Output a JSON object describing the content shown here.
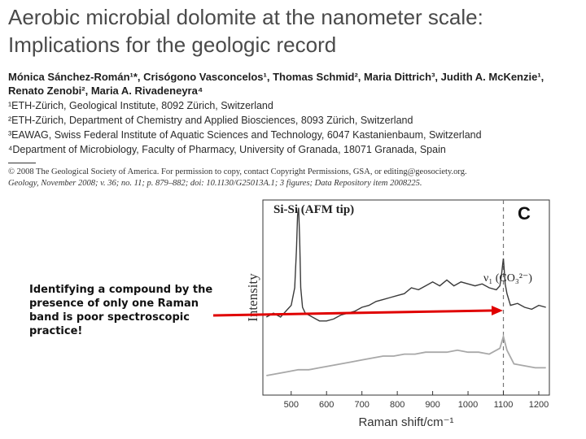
{
  "paper": {
    "title_line1": "Aerobic microbial dolomite at the nanometer scale:",
    "title_line2": "Implications for the geologic record",
    "authors_line1": "Mónica Sánchez-Román¹*, Crisógono Vasconcelos¹, Thomas Schmid², Maria Dittrich³, Judith A. McKenzie¹,",
    "authors_line2": "Renato Zenobi², Maria A. Rivadeneyra⁴",
    "affiliations": [
      "¹ETH-Zürich, Geological Institute, 8092 Zürich, Switzerland",
      "²ETH-Zürich, Department of Chemistry and Applied Biosciences, 8093 Zürich, Switzerland",
      "³EAWAG, Swiss Federal Institute of Aquatic Sciences and Technology, 6047 Kastanienbaum, Switzerland",
      "⁴Department of Microbiology, Faculty of Pharmacy, University of Granada, 18071 Granada, Spain"
    ],
    "copyright_line1": "© 2008 The Geological Society of America. For permission to copy, contact Copyright Permissions, GSA, or editing@geosociety.org.",
    "copyright_line2": "Geology, November 2008; v. 36; no. 11; p. 879–882; doi: 10.1130/G25013A.1; 3 figures; Data Repository item 2008225."
  },
  "annotation": {
    "text": "Identifying a compound by the presence of only one Raman band is poor spectroscopic practice!",
    "arrow_color": "#e00000"
  },
  "chart_data": {
    "type": "line",
    "panel_label": "C",
    "inset_label": "Si-Si (AFM tip)",
    "peak_label": "ν₁ (CO₃²⁻)",
    "xlabel": "Raman shift/cm⁻¹",
    "ylabel": "Intensity",
    "xlim": [
      420,
      1230
    ],
    "x_ticks": [
      500,
      600,
      700,
      800,
      900,
      1000,
      1100,
      1200
    ],
    "dashed_marker_x": 1100,
    "series": [
      {
        "color": "#3a3a3a",
        "x": [
          430,
          450,
          470,
          490,
          500,
          510,
          515,
          518,
          521,
          524,
          527,
          532,
          540,
          560,
          580,
          600,
          620,
          640,
          660,
          680,
          700,
          720,
          740,
          760,
          780,
          800,
          820,
          840,
          860,
          880,
          900,
          920,
          940,
          960,
          980,
          1000,
          1020,
          1040,
          1060,
          1080,
          1090,
          1095,
          1098,
          1100,
          1102,
          1105,
          1110,
          1120,
          1140,
          1160,
          1180,
          1200,
          1220
        ],
        "y": [
          0.4,
          0.42,
          0.4,
          0.44,
          0.46,
          0.55,
          0.75,
          0.92,
          0.96,
          0.8,
          0.55,
          0.45,
          0.42,
          0.4,
          0.38,
          0.38,
          0.39,
          0.41,
          0.42,
          0.43,
          0.45,
          0.46,
          0.48,
          0.49,
          0.5,
          0.51,
          0.52,
          0.55,
          0.54,
          0.56,
          0.58,
          0.56,
          0.59,
          0.56,
          0.58,
          0.57,
          0.56,
          0.57,
          0.55,
          0.54,
          0.56,
          0.62,
          0.67,
          0.7,
          0.65,
          0.57,
          0.52,
          0.46,
          0.47,
          0.45,
          0.44,
          0.46,
          0.45
        ]
      },
      {
        "color": "#a8a8a8",
        "x": [
          430,
          460,
          490,
          520,
          550,
          580,
          610,
          640,
          670,
          700,
          730,
          760,
          790,
          820,
          850,
          880,
          910,
          940,
          970,
          1000,
          1030,
          1060,
          1090,
          1100,
          1110,
          1130,
          1160,
          1190,
          1220
        ],
        "y": [
          0.1,
          0.11,
          0.12,
          0.13,
          0.13,
          0.14,
          0.15,
          0.16,
          0.17,
          0.18,
          0.19,
          0.2,
          0.2,
          0.21,
          0.21,
          0.22,
          0.22,
          0.22,
          0.23,
          0.22,
          0.22,
          0.21,
          0.24,
          0.3,
          0.23,
          0.16,
          0.15,
          0.14,
          0.14
        ]
      }
    ]
  }
}
